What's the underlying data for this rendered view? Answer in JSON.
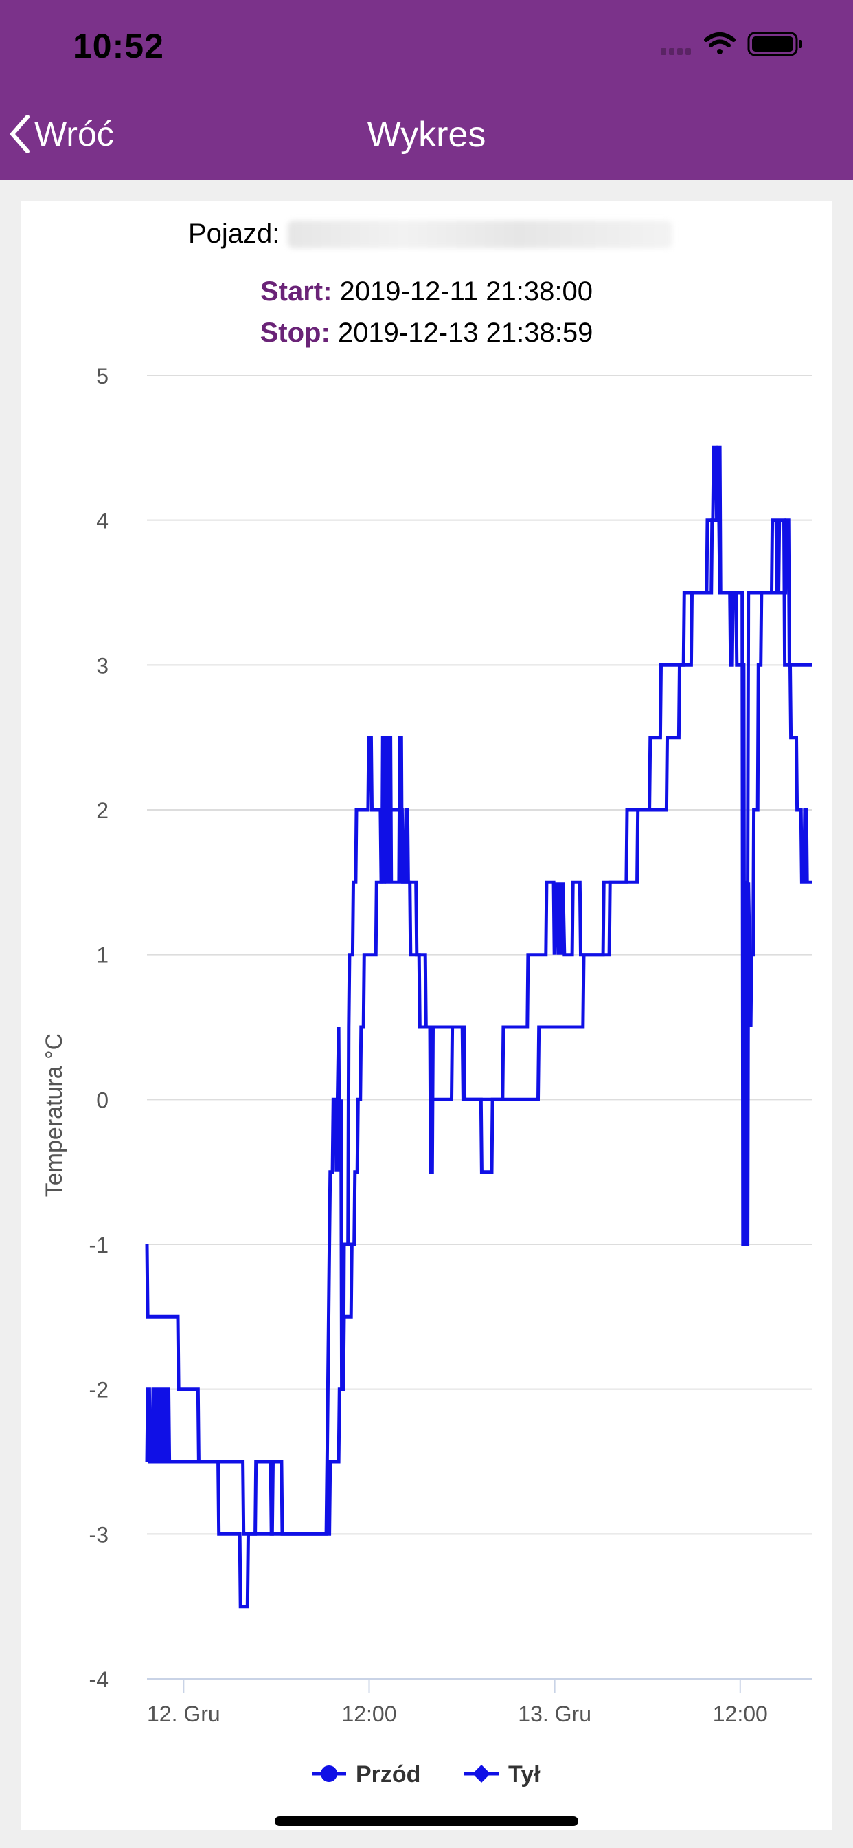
{
  "status_bar": {
    "time": "10:52",
    "icons": [
      "signal-icon",
      "wifi-icon",
      "battery-icon"
    ]
  },
  "nav": {
    "back_label": "Wróć",
    "title": "Wykres"
  },
  "header": {
    "vehicle_label": "Pojazd:",
    "start_label": "Start:",
    "start_value": "2019-12-11 21:38:00",
    "stop_label": "Stop:",
    "stop_value": "2019-12-13 21:38:59"
  },
  "colors": {
    "brand": "#7b328a",
    "accent_label": "#6a2377",
    "series": "#1010e6"
  },
  "chart_data": {
    "type": "line",
    "ylabel": "Temperatura °C",
    "ylim": [
      -4,
      5
    ],
    "yticks": [
      "5",
      "4",
      "3",
      "2",
      "1",
      "0",
      "-1",
      "-2",
      "-3",
      "-4"
    ],
    "xticks": [
      {
        "label": "12. Gru",
        "t": 2.37
      },
      {
        "label": "12:00",
        "t": 14.37
      },
      {
        "label": "13. Gru",
        "t": 26.37
      },
      {
        "label": "12:00",
        "t": 38.37
      }
    ],
    "x_unit": "hours from start",
    "legend_position": "bottom",
    "series": [
      {
        "name": "Przód",
        "marker": "circle",
        "points": [
          [
            0,
            -1
          ],
          [
            0.05,
            -1.5
          ],
          [
            2,
            -1.5
          ],
          [
            2.05,
            -2
          ],
          [
            3.3,
            -2
          ],
          [
            3.35,
            -2.5
          ],
          [
            4.6,
            -2.5
          ],
          [
            4.65,
            -3
          ],
          [
            6,
            -3
          ],
          [
            6.05,
            -3.5
          ],
          [
            6.5,
            -3.5
          ],
          [
            6.55,
            -3
          ],
          [
            7,
            -3
          ],
          [
            7.05,
            -2.5
          ],
          [
            8,
            -2.5
          ],
          [
            8.05,
            -3
          ],
          [
            11.6,
            -3
          ],
          [
            11.65,
            -2.5
          ],
          [
            11.8,
            -1
          ],
          [
            11.85,
            -0.5
          ],
          [
            12,
            -0.5
          ],
          [
            12.05,
            0
          ],
          [
            12.2,
            0
          ],
          [
            12.25,
            -0.5
          ],
          [
            12.4,
            0.5
          ],
          [
            12.45,
            -0.5
          ],
          [
            12.55,
            0
          ],
          [
            12.6,
            -2
          ],
          [
            12.7,
            -2
          ],
          [
            12.75,
            -1.5
          ],
          [
            13.2,
            -1.5
          ],
          [
            13.25,
            -1
          ],
          [
            13.4,
            -1
          ],
          [
            13.45,
            -0.5
          ],
          [
            13.6,
            -0.5
          ],
          [
            13.65,
            0
          ],
          [
            13.8,
            0
          ],
          [
            13.85,
            0.5
          ],
          [
            14,
            0.5
          ],
          [
            14.05,
            1
          ],
          [
            14.8,
            1
          ],
          [
            14.85,
            1.5
          ],
          [
            15.2,
            1.5
          ],
          [
            15.25,
            2.5
          ],
          [
            15.4,
            2.5
          ],
          [
            15.45,
            1.5
          ],
          [
            15.6,
            1.5
          ],
          [
            15.65,
            2.5
          ],
          [
            15.75,
            2.5
          ],
          [
            15.8,
            1.5
          ],
          [
            16.3,
            1.5
          ],
          [
            16.35,
            2.5
          ],
          [
            16.45,
            2.5
          ],
          [
            16.5,
            1.5
          ],
          [
            17,
            1.5
          ],
          [
            17.05,
            1
          ],
          [
            17.6,
            1
          ],
          [
            17.65,
            0.5
          ],
          [
            18.3,
            0.5
          ],
          [
            18.35,
            -0.5
          ],
          [
            18.45,
            -0.5
          ],
          [
            18.5,
            0.5
          ],
          [
            20.5,
            0.5
          ],
          [
            20.55,
            0
          ],
          [
            23,
            0
          ],
          [
            23.05,
            0.5
          ],
          [
            24.6,
            0.5
          ],
          [
            24.65,
            1
          ],
          [
            25.8,
            1
          ],
          [
            25.85,
            1.5
          ],
          [
            26.3,
            1.5
          ],
          [
            26.35,
            1
          ],
          [
            26.5,
            1.5
          ],
          [
            26.6,
            1
          ],
          [
            26.7,
            1.5
          ],
          [
            26.8,
            1
          ],
          [
            26.9,
            1.5
          ],
          [
            27,
            1
          ],
          [
            27.5,
            1
          ],
          [
            27.55,
            1.5
          ],
          [
            28,
            1.5
          ],
          [
            28.05,
            1
          ],
          [
            29.5,
            1
          ],
          [
            29.55,
            1.5
          ],
          [
            31.7,
            1.5
          ],
          [
            31.75,
            2
          ],
          [
            33.6,
            2
          ],
          [
            33.65,
            2.5
          ],
          [
            34.4,
            2.5
          ],
          [
            34.45,
            3
          ],
          [
            35.2,
            3
          ],
          [
            35.25,
            3.5
          ],
          [
            36.2,
            3.5
          ],
          [
            36.25,
            4
          ],
          [
            36.6,
            4
          ],
          [
            36.65,
            4.5
          ],
          [
            36.8,
            4.5
          ],
          [
            36.85,
            4
          ],
          [
            37,
            4
          ],
          [
            37.05,
            3.5
          ],
          [
            37.7,
            3.5
          ],
          [
            37.75,
            3
          ],
          [
            37.85,
            3
          ],
          [
            37.9,
            3.5
          ],
          [
            38.1,
            3.5
          ],
          [
            38.15,
            3
          ],
          [
            38.6,
            3
          ],
          [
            38.65,
            -0.5
          ],
          [
            38.7,
            1.5
          ],
          [
            38.75,
            -1
          ],
          [
            38.85,
            -1
          ],
          [
            38.9,
            1.5
          ],
          [
            39.05,
            0.5
          ],
          [
            39.1,
            1
          ],
          [
            39.2,
            1
          ],
          [
            39.25,
            2
          ],
          [
            39.5,
            2
          ],
          [
            39.55,
            3
          ],
          [
            39.7,
            3
          ],
          [
            39.75,
            3.5
          ],
          [
            40.4,
            3.5
          ],
          [
            40.45,
            4
          ],
          [
            40.7,
            4
          ],
          [
            40.75,
            3.5
          ],
          [
            40.85,
            3.5
          ],
          [
            40.9,
            4
          ],
          [
            41.2,
            4
          ],
          [
            41.25,
            3
          ],
          [
            41.6,
            3
          ],
          [
            41.65,
            2.5
          ],
          [
            42,
            2.5
          ],
          [
            42.05,
            2
          ],
          [
            42.3,
            2
          ],
          [
            42.35,
            1.5
          ],
          [
            42.5,
            1.5
          ],
          [
            42.55,
            2
          ],
          [
            42.65,
            2
          ],
          [
            42.7,
            1.5
          ],
          [
            43,
            1.5
          ]
        ]
      },
      {
        "name": "Tył",
        "marker": "diamond",
        "points": [
          [
            0,
            -2.5
          ],
          [
            0.05,
            -2
          ],
          [
            0.15,
            -2
          ],
          [
            0.2,
            -2.5
          ],
          [
            0.35,
            -2.5
          ],
          [
            0.4,
            -2
          ],
          [
            0.5,
            -2
          ],
          [
            0.55,
            -2.5
          ],
          [
            0.65,
            -2.5
          ],
          [
            0.7,
            -2
          ],
          [
            0.8,
            -2
          ],
          [
            0.85,
            -2.5
          ],
          [
            0.95,
            -2.5
          ],
          [
            1,
            -2
          ],
          [
            1.1,
            -2
          ],
          [
            1.15,
            -2.5
          ],
          [
            1.25,
            -2.5
          ],
          [
            1.3,
            -2
          ],
          [
            1.4,
            -2
          ],
          [
            1.45,
            -2.5
          ],
          [
            4.5,
            -2.5
          ],
          [
            4.55,
            -2.5
          ],
          [
            6.2,
            -2.5
          ],
          [
            6.25,
            -3
          ],
          [
            8.1,
            -3
          ],
          [
            8.15,
            -2.5
          ],
          [
            8.7,
            -2.5
          ],
          [
            8.75,
            -3
          ],
          [
            11.8,
            -3
          ],
          [
            11.85,
            -2.5
          ],
          [
            12.4,
            -2.5
          ],
          [
            12.45,
            -2
          ],
          [
            12.7,
            -2
          ],
          [
            12.75,
            -1
          ],
          [
            13,
            -1
          ],
          [
            13.05,
            0.5
          ],
          [
            13.1,
            1
          ],
          [
            13.3,
            1
          ],
          [
            13.35,
            1.5
          ],
          [
            13.5,
            1.5
          ],
          [
            13.55,
            2
          ],
          [
            14.3,
            2
          ],
          [
            14.35,
            2.5
          ],
          [
            14.5,
            2.5
          ],
          [
            14.55,
            2
          ],
          [
            15.1,
            2
          ],
          [
            15.15,
            1.5
          ],
          [
            15.35,
            1.5
          ],
          [
            15.4,
            2
          ],
          [
            16.5,
            2
          ],
          [
            16.55,
            1.5
          ],
          [
            16.7,
            1.5
          ],
          [
            16.75,
            2
          ],
          [
            16.85,
            2
          ],
          [
            16.9,
            1.5
          ],
          [
            17.4,
            1.5
          ],
          [
            17.45,
            1
          ],
          [
            18,
            1
          ],
          [
            18.05,
            0.5
          ],
          [
            18.4,
            0.5
          ],
          [
            18.45,
            0
          ],
          [
            19.7,
            0
          ],
          [
            19.75,
            0.5
          ],
          [
            20.4,
            0.5
          ],
          [
            20.45,
            0
          ],
          [
            21.6,
            0
          ],
          [
            21.65,
            -0.5
          ],
          [
            22.3,
            -0.5
          ],
          [
            22.35,
            0
          ],
          [
            25.3,
            0
          ],
          [
            25.35,
            0.5
          ],
          [
            28.2,
            0.5
          ],
          [
            28.25,
            1
          ],
          [
            29.9,
            1
          ],
          [
            29.95,
            1.5
          ],
          [
            31,
            1.5
          ],
          [
            31.05,
            2
          ],
          [
            32.5,
            2
          ],
          [
            32.55,
            2.5
          ],
          [
            33.2,
            2.5
          ],
          [
            33.25,
            3
          ],
          [
            34.7,
            3
          ],
          [
            34.75,
            3.5
          ],
          [
            36.5,
            3.5
          ],
          [
            36.55,
            4
          ],
          [
            36.9,
            4
          ],
          [
            36.95,
            4.5
          ],
          [
            37.05,
            4.5
          ],
          [
            37.1,
            3.5
          ],
          [
            38.5,
            3.5
          ],
          [
            38.55,
            -1
          ],
          [
            38.7,
            -1
          ],
          [
            38.75,
            1.5
          ],
          [
            38.85,
            1.5
          ],
          [
            38.9,
            3.5
          ],
          [
            41.3,
            3.5
          ],
          [
            41.35,
            4
          ],
          [
            41.5,
            4
          ],
          [
            41.55,
            3
          ],
          [
            43,
            3
          ]
        ]
      }
    ]
  }
}
